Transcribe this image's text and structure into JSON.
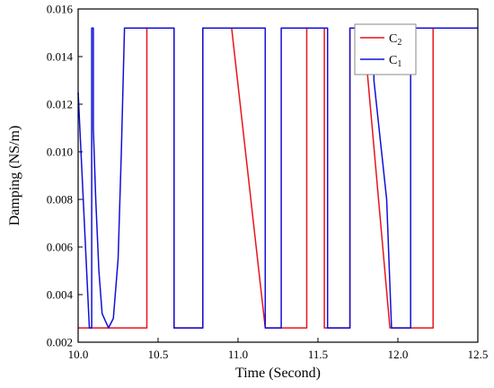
{
  "chart_data": {
    "type": "line",
    "title": "",
    "xlabel": "Time (Second)",
    "ylabel": "Damping (NS/m)",
    "xlim": [
      10.0,
      12.5
    ],
    "ylim": [
      0.002,
      0.016
    ],
    "x_ticks": [
      10.0,
      10.5,
      11.0,
      11.5,
      12.0,
      12.5
    ],
    "x_tick_labels": [
      "10.0",
      "10.5",
      "11.0",
      "11.5",
      "12.0",
      "12.5"
    ],
    "y_ticks": [
      0.002,
      0.004,
      0.006,
      0.008,
      0.01,
      0.012,
      0.014,
      0.016
    ],
    "y_tick_labels": [
      "0.002",
      "0.004",
      "0.006",
      "0.008",
      "0.010",
      "0.012",
      "0.014",
      "0.016"
    ],
    "grid": false,
    "legend_position": "top-right",
    "series": [
      {
        "name": "C",
        "subscript": "2",
        "color": "#e8141b",
        "x": [
          10.0,
          10.0,
          10.43,
          10.43,
          10.6,
          10.6,
          10.78,
          10.78,
          10.96,
          11.17,
          11.17,
          11.43,
          11.43,
          11.54,
          11.54,
          11.7,
          11.7,
          11.75,
          11.75,
          11.8,
          11.95,
          11.95,
          12.22,
          12.22,
          12.5
        ],
        "y": [
          0.0026,
          0.0026,
          0.0026,
          0.0152,
          0.0152,
          0.0026,
          0.0026,
          0.0152,
          0.0152,
          0.0026,
          0.0026,
          0.0026,
          0.0152,
          0.0152,
          0.0026,
          0.0026,
          0.0152,
          0.0152,
          0.014,
          0.014,
          0.0026,
          0.0026,
          0.0026,
          0.0152,
          0.0152
        ]
      },
      {
        "name": "C",
        "subscript": "1",
        "color": "#1010d8",
        "x": [
          10.0,
          10.07,
          10.07,
          10.085,
          10.085,
          10.095,
          10.095,
          10.11,
          10.13,
          10.15,
          10.19,
          10.22,
          10.25,
          10.27,
          10.29,
          10.29,
          10.6,
          10.6,
          10.78,
          10.78,
          11.17,
          11.17,
          11.27,
          11.27,
          11.56,
          11.56,
          11.7,
          11.7,
          11.85,
          11.85,
          11.93,
          11.96,
          11.96,
          12.08,
          12.08,
          12.5
        ],
        "y": [
          0.0125,
          0.0026,
          0.0026,
          0.0026,
          0.0152,
          0.0152,
          0.011,
          0.008,
          0.005,
          0.0032,
          0.0026,
          0.003,
          0.0055,
          0.01,
          0.0152,
          0.0152,
          0.0152,
          0.0026,
          0.0026,
          0.0152,
          0.0152,
          0.0026,
          0.0026,
          0.0152,
          0.0152,
          0.0026,
          0.0026,
          0.0152,
          0.0152,
          0.013,
          0.008,
          0.0026,
          0.0026,
          0.0026,
          0.0152,
          0.0152
        ]
      }
    ]
  }
}
